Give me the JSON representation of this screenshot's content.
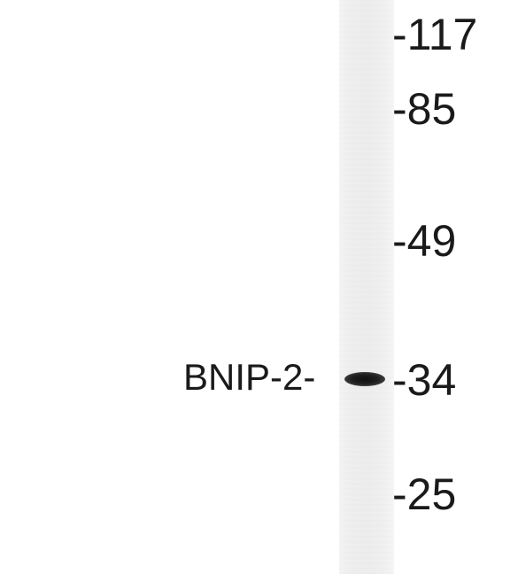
{
  "blot": {
    "protein_label": "BNIP-2-",
    "markers": [
      {
        "label": "-117"
      },
      {
        "label": "-85"
      },
      {
        "label": "-49"
      },
      {
        "label": "-34"
      },
      {
        "label": "-25"
      }
    ]
  },
  "colors": {
    "background": "#ffffff",
    "lane": "#efefef",
    "band": "#1a1a1a",
    "text": "#1a1a1a"
  }
}
